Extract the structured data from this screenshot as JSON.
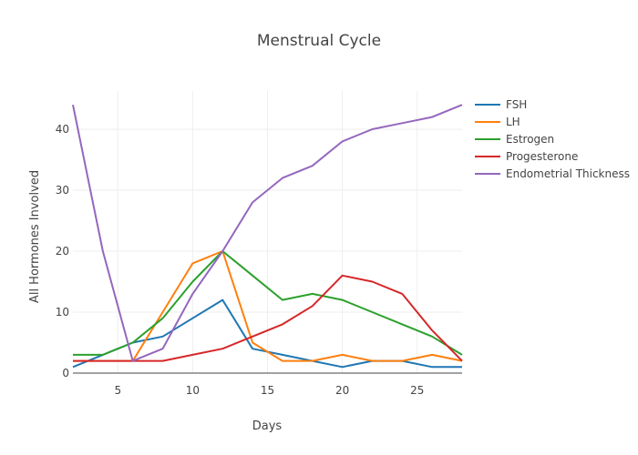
{
  "chart_data": {
    "type": "line",
    "title": "Menstrual Cycle",
    "xlabel": "Days",
    "ylabel": "All Hormones Involved",
    "xlim": [
      2,
      28
    ],
    "ylim": [
      0,
      46
    ],
    "xticks": [
      5,
      10,
      15,
      20,
      25
    ],
    "yticks": [
      0,
      10,
      20,
      30,
      40
    ],
    "grid": true,
    "legend": "top-right",
    "x": [
      2,
      4,
      6,
      8,
      10,
      12,
      14,
      16,
      18,
      20,
      22,
      24,
      26,
      28
    ],
    "series": [
      {
        "name": "FSH",
        "color": "#1f77b4",
        "values": [
          1,
          3,
          5,
          6,
          9,
          12,
          4,
          3,
          2,
          1,
          2,
          2,
          1,
          1
        ]
      },
      {
        "name": "LH",
        "color": "#ff7f0e",
        "values": [
          2,
          2,
          2,
          10,
          18,
          20,
          5,
          2,
          2,
          3,
          2,
          2,
          3,
          2
        ]
      },
      {
        "name": "Estrogen",
        "color": "#2ca02c",
        "values": [
          3,
          3,
          5,
          9,
          15,
          20,
          16,
          12,
          13,
          12,
          10,
          8,
          6,
          3
        ]
      },
      {
        "name": "Progesterone",
        "color": "#d62728",
        "values": [
          2,
          2,
          2,
          2,
          3,
          4,
          6,
          8,
          11,
          16,
          15,
          13,
          7,
          2
        ]
      },
      {
        "name": "Endometrial Thickness",
        "color": "#9467bd",
        "values": [
          44,
          20,
          2,
          4,
          13,
          20,
          28,
          32,
          34,
          38,
          40,
          41,
          42,
          44
        ]
      }
    ]
  }
}
